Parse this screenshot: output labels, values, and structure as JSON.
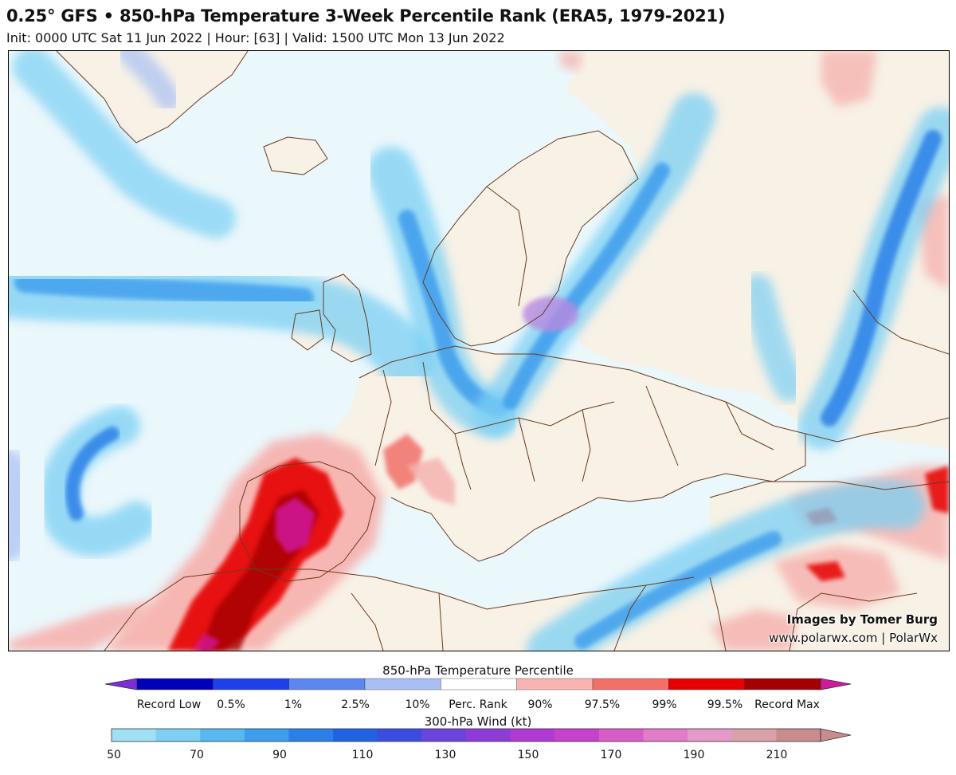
{
  "header": {
    "title": "0.25° GFS • 850-hPa Temperature 3-Week Percentile Rank (ERA5, 1979-2021)",
    "subtitle": "Init: 0000 UTC Sat 11 Jun 2022 | Hour: [63] | Valid: 1500 UTC Mon 13 Jun 2022"
  },
  "credits": {
    "line1": "Images by Tomer Burg",
    "line2": "www.polarwx.com | PolarWx"
  },
  "colorbar_temp": {
    "title": "850-hPa Temperature Percentile",
    "labels": [
      "Record Low",
      "0.5%",
      "1%",
      "2.5%",
      "10%",
      "Perc. Rank",
      "90%",
      "97.5%",
      "99%",
      "99.5%",
      "Record Max"
    ],
    "colors": [
      "#7b2ed8",
      "#0000b8",
      "#1f3fe8",
      "#5c87ee",
      "#a9bff4",
      "#ffffff",
      "#f8b4b0",
      "#f27068",
      "#e60000",
      "#a40000",
      "#d0199c"
    ]
  },
  "colorbar_wind": {
    "title": "300-hPa Wind (kt)",
    "labels": [
      "50",
      "70",
      "90",
      "110",
      "130",
      "150",
      "170",
      "190",
      "210"
    ],
    "colors": [
      "#9fe0f6",
      "#7cd0f4",
      "#58b8f0",
      "#3e9ded",
      "#2a80e8",
      "#1f63e2",
      "#3c4ce0",
      "#6a44dc",
      "#8e3cd8",
      "#b03ad4",
      "#c841cc",
      "#d85cc8",
      "#e07cc8",
      "#e49ac8",
      "#d8a0a8",
      "#c98c8c"
    ]
  },
  "legend_colors": {
    "land": "#f7f1e6",
    "ocean": "#eaf7fb",
    "border": "#6b3a1e"
  }
}
